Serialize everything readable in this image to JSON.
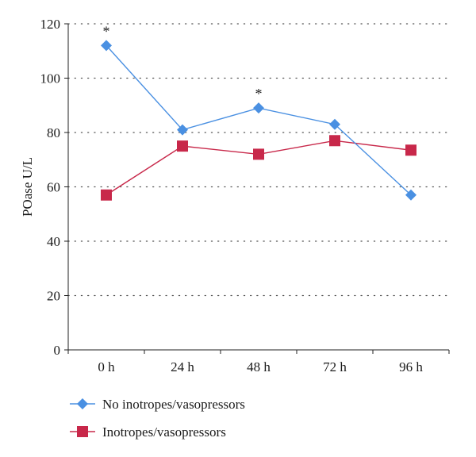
{
  "chart_data": {
    "type": "line",
    "categories": [
      "0 h",
      "24 h",
      "48 h",
      "72 h",
      "96 h"
    ],
    "ylabel": "POase U/L",
    "xlabel": "",
    "ylim": [
      0,
      120
    ],
    "y_ticks": [
      0,
      20,
      40,
      60,
      80,
      100,
      120
    ],
    "grid": "horizontal dotted",
    "legend_position": "bottom-left",
    "series": [
      {
        "name": "No inotropes/vasopressors",
        "values": [
          112,
          81,
          89,
          83,
          57
        ],
        "color": "#4a90e2",
        "marker": "diamond",
        "annotations": [
          "*",
          "",
          "*",
          "",
          ""
        ]
      },
      {
        "name": "Inotropes/vasopressors",
        "values": [
          57,
          75,
          72,
          77,
          73.5
        ],
        "color": "#c8284a",
        "marker": "square",
        "annotations": [
          "",
          "",
          "",
          "",
          ""
        ]
      }
    ]
  }
}
